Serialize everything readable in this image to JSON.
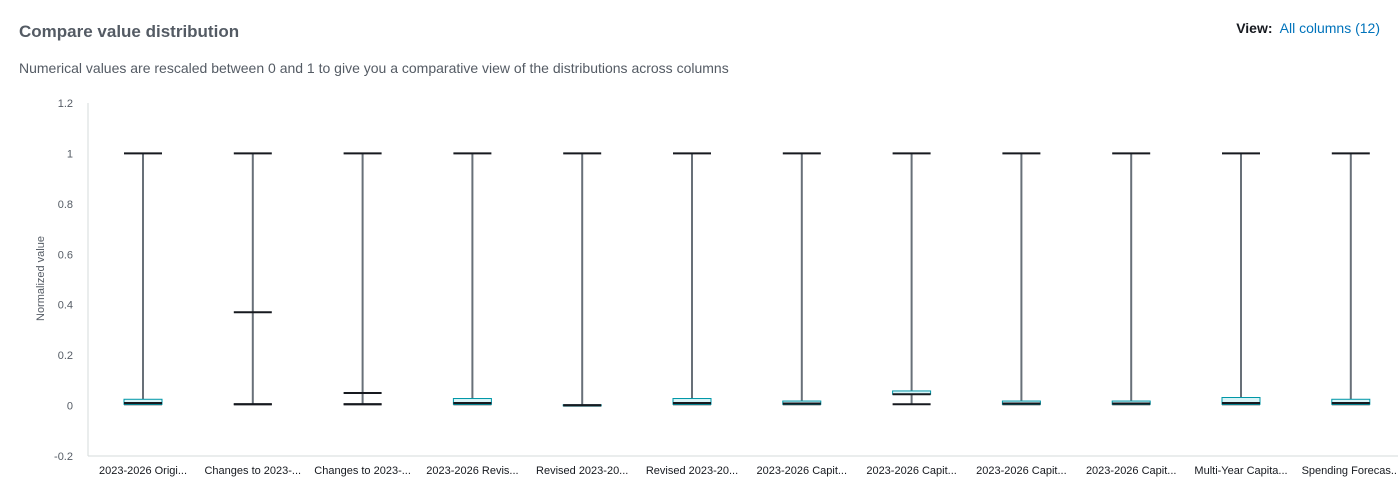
{
  "header": {
    "title": "Compare value distribution",
    "view_label": "View:",
    "view_value": "All columns (12)",
    "subtitle": "Numerical values are rescaled between 0 and 1 to give you a comparative view of the distributions across columns"
  },
  "colors": {
    "whisker": "#687078",
    "cap": "#16191f",
    "box_fill": "#d9f4f7",
    "box_stroke": "#0097a7",
    "median": "#16191f",
    "axis": "#d5dbdb"
  },
  "chart_data": {
    "type": "box",
    "ylabel": "Normalized value",
    "ylim": [
      -0.2,
      1.2
    ],
    "yticks": [
      "-0.2",
      "0",
      "0.2",
      "0.4",
      "0.6",
      "0.8",
      "1",
      "1.2"
    ],
    "categories": [
      "2023-2026 Origi...",
      "Changes to 2023-...",
      "Changes to 2023-...",
      "2023-2026 Revis...",
      "Revised 2023-20...",
      "Revised 2023-20...",
      "2023-2026 Capit...",
      "2023-2026 Capit...",
      "2023-2026 Capit...",
      "2023-2026 Capit...",
      "Multi-Year Capita...",
      "Spending Forecas..."
    ],
    "series": [
      {
        "min": 0.005,
        "q1": 0.005,
        "median": 0.01,
        "q3": 0.025,
        "max": 1.0
      },
      {
        "min": 0.005,
        "q1": 0.005,
        "median": 0.005,
        "q3": 0.005,
        "max": 1.0,
        "upper_cap": 0.37
      },
      {
        "min": 0.005,
        "q1": 0.005,
        "median": 0.005,
        "q3": 0.005,
        "max": 1.0,
        "upper_cap": 0.05
      },
      {
        "min": 0.005,
        "q1": 0.005,
        "median": 0.01,
        "q3": 0.028,
        "max": 1.0
      },
      {
        "min": 0.0,
        "q1": 0.0,
        "median": 0.002,
        "q3": 0.003,
        "max": 1.0
      },
      {
        "min": 0.005,
        "q1": 0.005,
        "median": 0.01,
        "q3": 0.028,
        "max": 1.0
      },
      {
        "min": 0.005,
        "q1": 0.005,
        "median": 0.008,
        "q3": 0.018,
        "max": 1.0
      },
      {
        "min": 0.005,
        "q1": 0.045,
        "median": 0.045,
        "q3": 0.058,
        "max": 1.0
      },
      {
        "min": 0.005,
        "q1": 0.005,
        "median": 0.008,
        "q3": 0.018,
        "max": 1.0
      },
      {
        "min": 0.005,
        "q1": 0.005,
        "median": 0.008,
        "q3": 0.018,
        "max": 1.0
      },
      {
        "min": 0.005,
        "q1": 0.005,
        "median": 0.01,
        "q3": 0.032,
        "max": 1.0
      },
      {
        "min": 0.005,
        "q1": 0.005,
        "median": 0.01,
        "q3": 0.025,
        "max": 1.0
      }
    ]
  }
}
